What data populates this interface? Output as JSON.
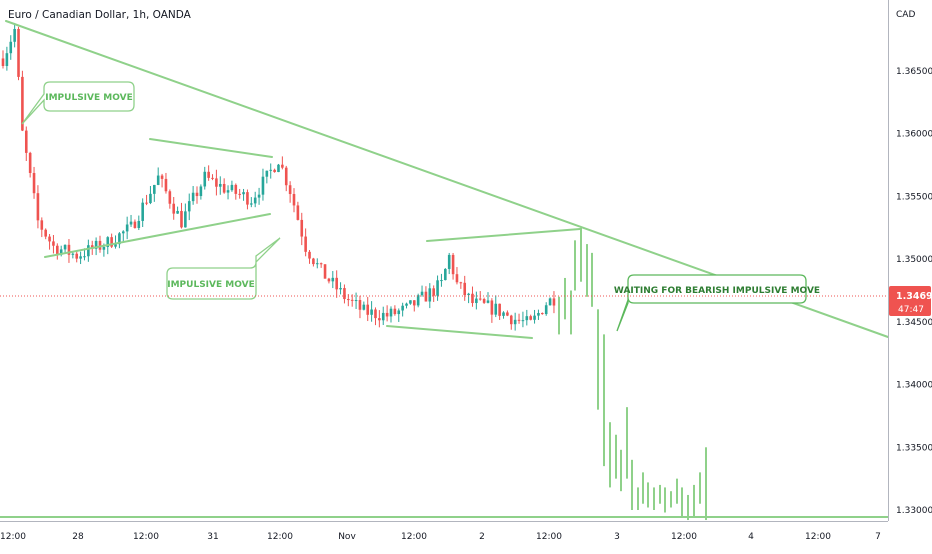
{
  "symbol_title": "Euro / Canadian Dollar, 1h, OANDA",
  "currency": "CAD",
  "last_price_label": "1.34693",
  "countdown_label": "47:47",
  "colors": {
    "up": "#26a69a",
    "down": "#ef5350",
    "drawing": "#8fd18a",
    "drawing_text": "#5cb85c",
    "price_tag": "#ef5350",
    "grid": "#e8eaed"
  },
  "annotations": [
    {
      "id": "impulsive-move-1",
      "text": "IMPULSIVE MOVE"
    },
    {
      "id": "impulsive-move-2",
      "text": "IMPULSIVE MOVE"
    },
    {
      "id": "waiting-bearish",
      "text": "WAITING FOR BEARISH IMPULSIVE MOVE"
    }
  ],
  "chart_data": {
    "type": "candlestick",
    "title": "Euro / Canadian Dollar, 1h, OANDA",
    "y_axis_label": "CAD",
    "ylim": [
      1.3296,
      1.3696
    ],
    "y_ticks": [
      "1.36500",
      "1.36000",
      "1.35500",
      "1.35000",
      "1.34500",
      "1.34000",
      "1.33500",
      "1.33000"
    ],
    "x_tick_labels": [
      "12:00",
      "28",
      "12:00",
      "31",
      "12:00",
      "Nov",
      "12:00",
      "2",
      "12:00",
      "3",
      "12:00",
      "4",
      "12:00",
      "7"
    ],
    "last_price": 1.34693,
    "grid": false,
    "projection": "bearish (bar pattern projection)"
  }
}
